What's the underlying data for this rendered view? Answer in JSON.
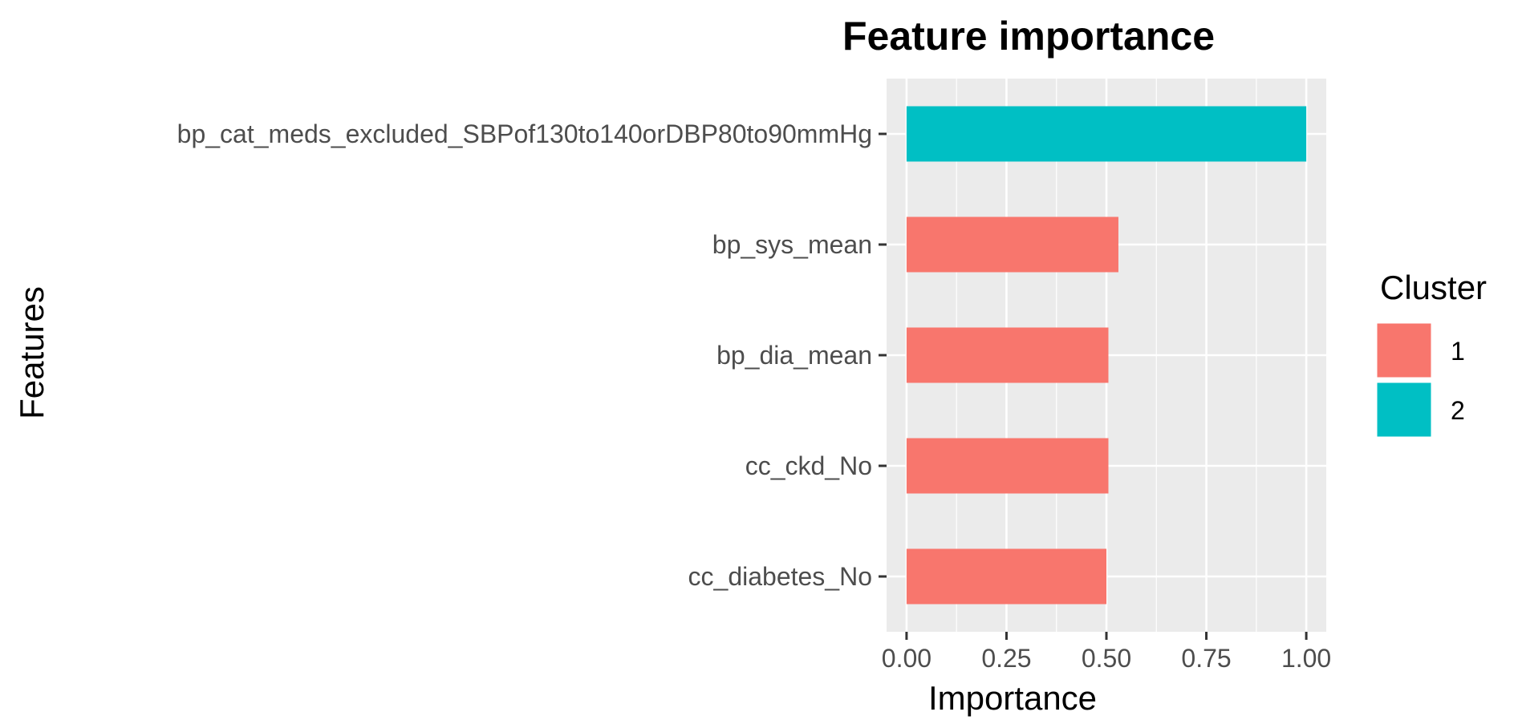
{
  "chart_data": {
    "type": "bar",
    "orientation": "horizontal",
    "title": "Feature importance",
    "xlabel": "Importance",
    "ylabel": "Features",
    "xlim": [
      -0.05,
      1.05
    ],
    "x_ticks": [
      "0.00",
      "0.25",
      "0.50",
      "0.75",
      "1.00"
    ],
    "x_tick_values": [
      0,
      0.25,
      0.5,
      0.75,
      1.0
    ],
    "grid": true,
    "legend": {
      "title": "Cluster",
      "placement": "right",
      "entries": [
        {
          "label": "1",
          "color": "#F8766D"
        },
        {
          "label": "2",
          "color": "#00BFC4"
        }
      ]
    },
    "categories": [
      "bp_cat_meds_excluded_SBPof130to140orDBP80to90mmHg",
      "bp_sys_mean",
      "bp_dia_mean",
      "cc_ckd_No",
      "cc_diabetes_No"
    ],
    "values": [
      1.0,
      0.53,
      0.505,
      0.505,
      0.5
    ],
    "clusters": [
      "2",
      "1",
      "1",
      "1",
      "1"
    ]
  },
  "colors": {
    "panel_background": "#EBEBEB",
    "grid_major": "#FFFFFF",
    "tick_text": "#4D4D4D",
    "tick_mark": "#333333"
  }
}
